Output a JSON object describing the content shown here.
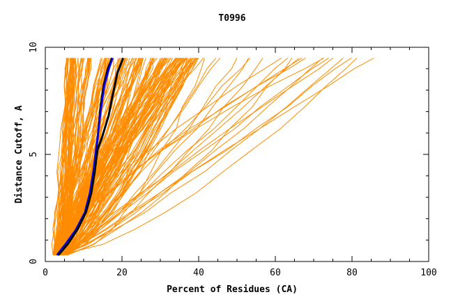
{
  "chart_data": {
    "type": "line",
    "title": "T0996",
    "xlabel": "Percent of Residues (CA)",
    "ylabel": "Distance Cutoff, A",
    "xlim": [
      0,
      100
    ],
    "ylim": [
      0,
      10
    ],
    "x_ticks": [
      0,
      20,
      40,
      60,
      80,
      100
    ],
    "x_tick_labels": [
      "0",
      "20",
      "40",
      "60",
      "80",
      "100"
    ],
    "y_ticks": [
      0,
      5,
      10
    ],
    "y_tick_labels": [
      "0",
      "5",
      "10"
    ],
    "x_minor_step": 5,
    "y_minor_step": 1,
    "colors": {
      "models": "#ff8c00",
      "highlight_blue": "#0000ff",
      "highlight_black": "#000000"
    },
    "highlight_series": [
      {
        "name": "black-1",
        "color": "#000000",
        "x": [
          3.2,
          5.5,
          8.2,
          10.4,
          11.8,
          12.6,
          13.3,
          13.9,
          14.4,
          15.2,
          16.3,
          17.4
        ],
        "y": [
          0.3,
          0.8,
          1.5,
          2.3,
          3.2,
          4.2,
          5.2,
          6.2,
          7.2,
          8.2,
          9.0,
          9.5
        ]
      },
      {
        "name": "blue",
        "color": "#0000ff",
        "x": [
          3.0,
          5.2,
          8.0,
          10.3,
          11.6,
          12.5,
          13.2,
          13.9,
          14.6,
          15.4,
          16.6,
          17.6
        ],
        "y": [
          0.3,
          0.8,
          1.5,
          2.3,
          3.2,
          4.2,
          5.2,
          6.2,
          7.2,
          8.2,
          9.0,
          9.5
        ]
      },
      {
        "name": "black-2",
        "color": "#000000",
        "x": [
          3.4,
          5.8,
          8.4,
          10.6,
          12.0,
          12.9,
          13.6,
          14.8,
          16.5,
          17.6,
          18.8,
          20.3
        ],
        "y": [
          0.3,
          0.8,
          1.5,
          2.3,
          3.2,
          4.2,
          5.2,
          5.8,
          6.8,
          7.8,
          8.8,
          9.5
        ]
      }
    ],
    "model_envelope": {
      "description": "~200 orange model curves; each starts near (2-6, 0.3) and ends at y=9.5",
      "start_x_range": [
        2,
        6
      ],
      "end_x_range": [
        5,
        89
      ],
      "curve_count": 200
    }
  }
}
